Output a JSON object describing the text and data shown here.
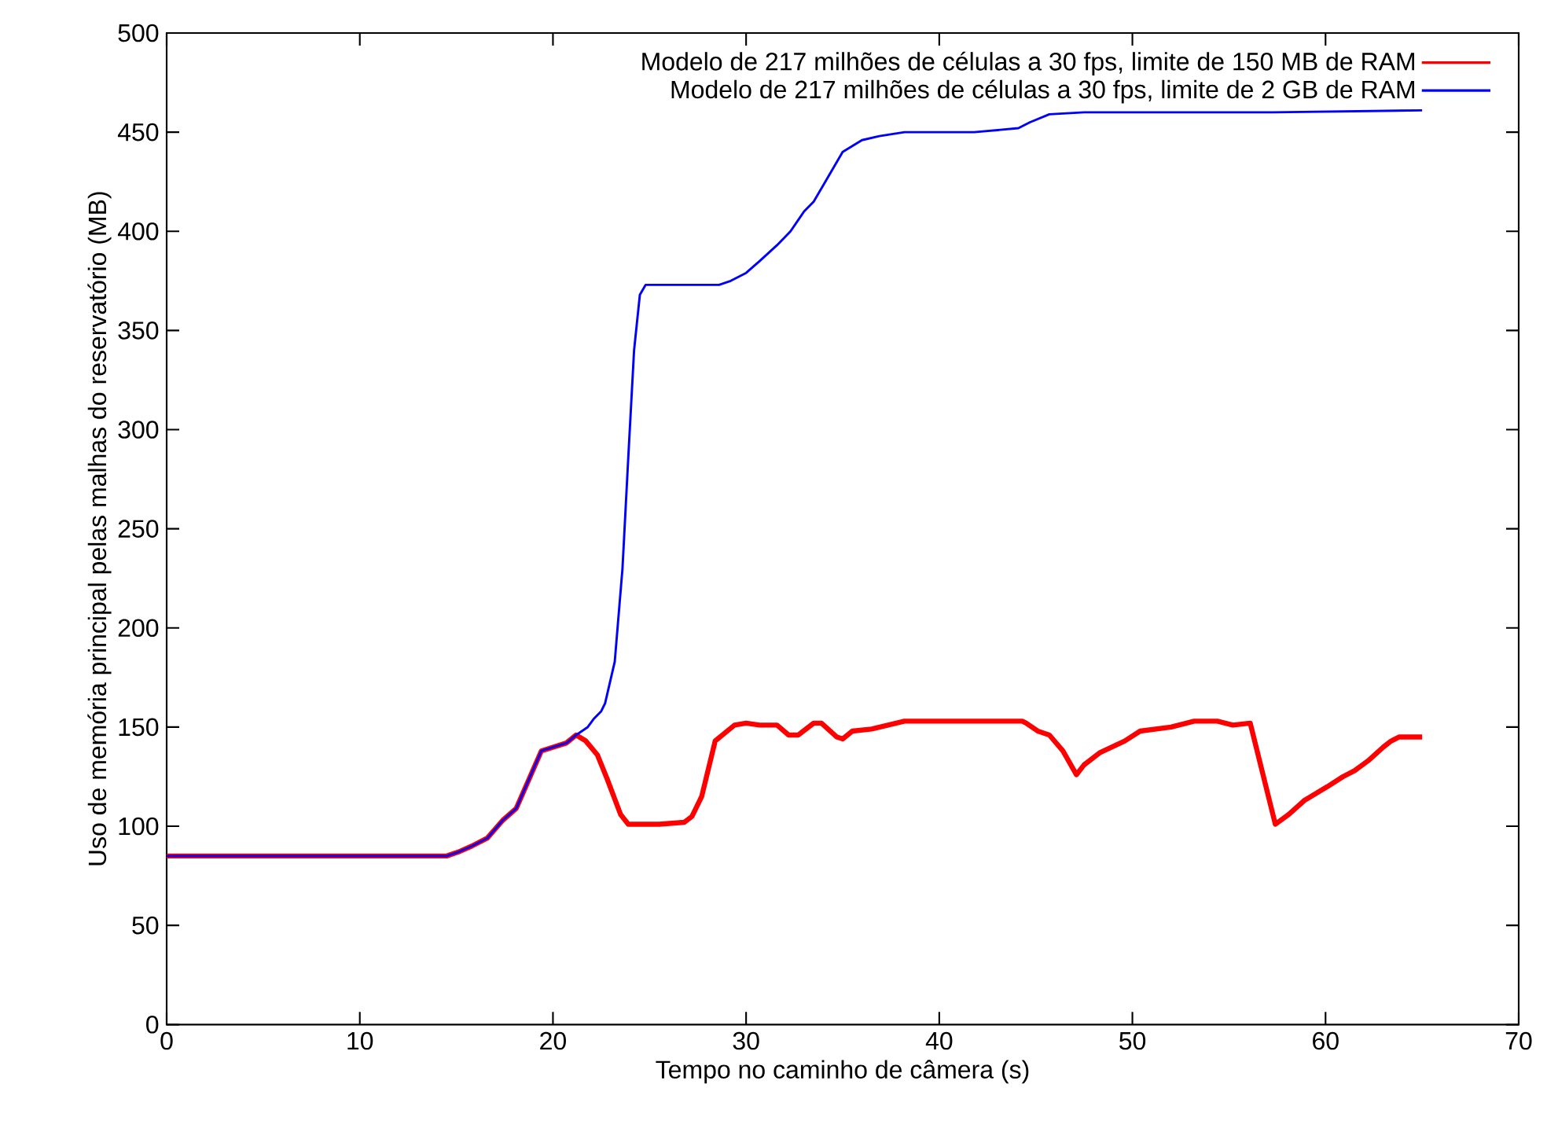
{
  "chart_data": {
    "type": "line",
    "xlabel": "Tempo no caminho de câmera (s)",
    "ylabel": "Uso de memória principal pelas malhas do reservatório (MB)",
    "xlim": [
      0,
      70
    ],
    "ylim": [
      0,
      500
    ],
    "xticks": [
      0,
      10,
      20,
      30,
      40,
      50,
      60,
      70
    ],
    "yticks": [
      0,
      50,
      100,
      150,
      200,
      250,
      300,
      350,
      400,
      450,
      500
    ],
    "grid": false,
    "legend": "top right",
    "marker": "none",
    "line_style": "solid",
    "series": [
      {
        "name": "Modelo de 217 milhões de células a 30 fps, limite de 150 MB de RAM",
        "color": "#ff0000",
        "x": [
          0,
          14.5,
          15.1,
          15.8,
          16.6,
          17.4,
          18.1,
          19.4,
          20.7,
          21.2,
          21.7,
          22.3,
          22.8,
          23.5,
          23.9,
          25.5,
          26.8,
          27.2,
          27.7,
          28.4,
          29.4,
          30.0,
          30.7,
          31.6,
          32.2,
          32.7,
          33.5,
          33.9,
          34.7,
          35.0,
          35.5,
          36.5,
          38.2,
          44.3,
          44.5,
          45.1,
          45.7,
          46.4,
          47.1,
          47.5,
          48.3,
          49.6,
          50.4,
          52.0,
          53.2,
          54.4,
          55.2,
          56.1,
          57.4,
          58.1,
          58.9,
          60.1,
          60.9,
          61.5,
          62.2,
          63.0,
          63.4,
          63.8,
          65.0
        ],
        "values": [
          85,
          85,
          87,
          90,
          94,
          103,
          109,
          138,
          142,
          146,
          143,
          136,
          124,
          106,
          101,
          101,
          102,
          105,
          115,
          143,
          151,
          152,
          151,
          151,
          146,
          146,
          152,
          152,
          145,
          144,
          148,
          149,
          153,
          153,
          152,
          148,
          146,
          138,
          126,
          131,
          137,
          143,
          148,
          150,
          153,
          153,
          151,
          152,
          101,
          106,
          113,
          120,
          125,
          128,
          133,
          140,
          143,
          145,
          145
        ]
      },
      {
        "name": "Modelo de 217 milhões de células a 30 fps, limite de 2 GB de RAM",
        "color": "#0000ff",
        "x": [
          0,
          14.5,
          15.1,
          15.8,
          16.6,
          17.4,
          18.1,
          19.4,
          20.7,
          21.2,
          21.8,
          22.1,
          22.5,
          22.7,
          23.2,
          23.6,
          23.9,
          24.2,
          24.5,
          24.8,
          28.6,
          29.2,
          30.0,
          30.7,
          31.6,
          32.3,
          33.0,
          33.5,
          34.1,
          35.0,
          36.0,
          36.9,
          38.2,
          41.8,
          44.1,
          44.7,
          45.7,
          47.5,
          57.3,
          65.0
        ],
        "values": [
          85,
          85,
          87,
          90,
          94,
          103,
          109,
          138,
          142,
          146,
          150,
          154,
          158,
          162,
          183,
          230,
          286,
          340,
          368,
          373,
          373,
          375,
          379,
          385,
          393,
          400,
          410,
          415,
          425,
          440,
          446,
          448,
          450,
          450,
          452,
          455,
          459,
          460,
          460,
          461
        ]
      }
    ]
  }
}
